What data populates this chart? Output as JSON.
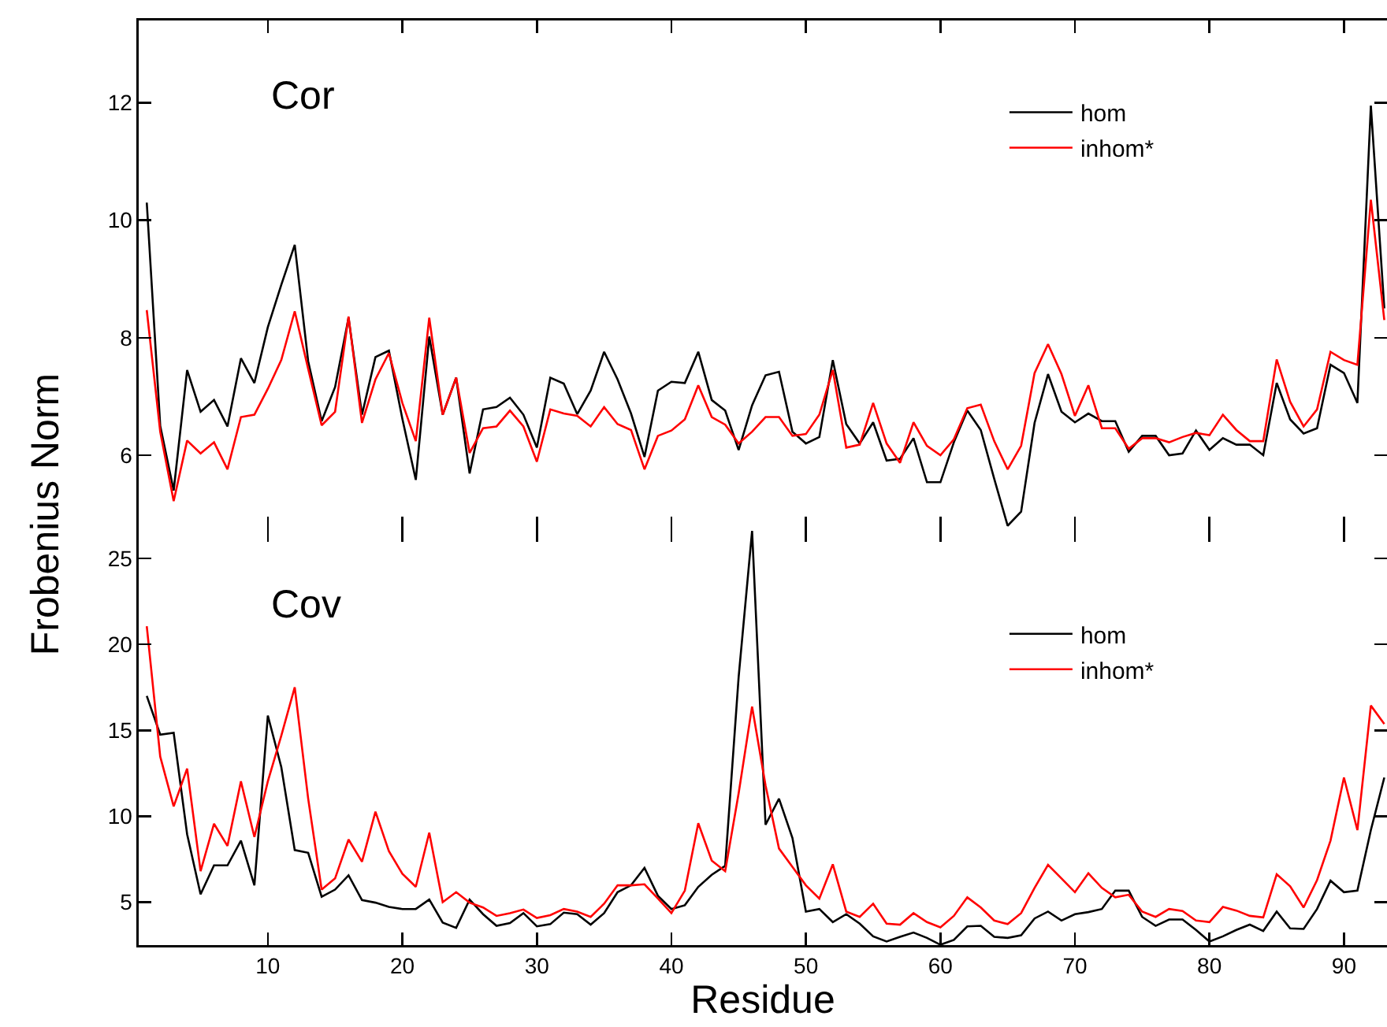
{
  "chart_data": [
    {
      "type": "line",
      "title": "Cor",
      "ylabel": "Frobenius Norm",
      "x": [
        1,
        2,
        3,
        4,
        5,
        6,
        7,
        8,
        9,
        10,
        11,
        12,
        13,
        14,
        15,
        16,
        17,
        18,
        19,
        20,
        21,
        22,
        23,
        24,
        25,
        26,
        27,
        28,
        29,
        30,
        31,
        32,
        33,
        34,
        35,
        36,
        37,
        38,
        39,
        40,
        41,
        42,
        43,
        44,
        45,
        46,
        47,
        48,
        49,
        50,
        51,
        52,
        53,
        54,
        55,
        56,
        57,
        58,
        59,
        60,
        61,
        62,
        63,
        64,
        65,
        66,
        67,
        68,
        69,
        70,
        71,
        72,
        73,
        74,
        75,
        76,
        77,
        78,
        79,
        80,
        81,
        82,
        83,
        84,
        85,
        86,
        87,
        88,
        89,
        90,
        91,
        92,
        93
      ],
      "series": [
        {
          "name": "hom",
          "color": "#000000",
          "values": [
            10.3,
            6.5,
            5.4,
            7.45,
            6.74,
            6.94,
            6.49,
            7.65,
            7.23,
            8.18,
            8.9,
            9.58,
            7.6,
            6.58,
            7.16,
            8.34,
            6.69,
            7.67,
            7.78,
            6.62,
            5.58,
            8.02,
            6.69,
            7.32,
            5.69,
            6.78,
            6.82,
            6.98,
            6.69,
            6.13,
            7.32,
            7.22,
            6.7,
            7.1,
            7.76,
            7.29,
            6.71,
            5.97,
            7.1,
            7.25,
            7.23,
            7.76,
            6.94,
            6.76,
            6.09,
            6.85,
            7.36,
            7.42,
            6.4,
            6.2,
            6.31,
            7.62,
            6.53,
            6.2,
            6.56,
            5.91,
            5.94,
            6.29,
            5.54,
            5.54,
            6.22,
            6.76,
            6.43,
            5.6,
            4.8,
            5.04,
            6.55,
            7.38,
            6.74,
            6.56,
            6.71,
            6.58,
            6.58,
            6.06,
            6.33,
            6.33,
            6.0,
            6.03,
            6.42,
            6.09,
            6.29,
            6.18,
            6.18,
            6.0,
            7.23,
            6.61,
            6.37,
            6.46,
            7.54,
            7.4,
            6.89,
            11.95,
            8.5
          ]
        },
        {
          "name": "inhom*",
          "color": "#ff0000",
          "values": [
            8.47,
            6.4,
            5.22,
            6.25,
            6.03,
            6.22,
            5.76,
            6.65,
            6.69,
            7.13,
            7.62,
            8.45,
            7.47,
            6.51,
            6.74,
            8.36,
            6.55,
            7.29,
            7.74,
            6.89,
            6.24,
            8.34,
            6.69,
            7.32,
            6.04,
            6.46,
            6.49,
            6.76,
            6.49,
            5.89,
            6.78,
            6.71,
            6.67,
            6.49,
            6.82,
            6.53,
            6.43,
            5.76,
            6.33,
            6.42,
            6.61,
            7.19,
            6.65,
            6.52,
            6.2,
            6.4,
            6.65,
            6.65,
            6.33,
            6.36,
            6.69,
            7.45,
            6.13,
            6.18,
            6.89,
            6.2,
            5.87,
            6.56,
            6.16,
            6.0,
            6.27,
            6.8,
            6.86,
            6.24,
            5.76,
            6.16,
            7.4,
            7.89,
            7.38,
            6.67,
            7.19,
            6.46,
            6.46,
            6.11,
            6.29,
            6.29,
            6.22,
            6.31,
            6.38,
            6.34,
            6.69,
            6.43,
            6.24,
            6.24,
            7.63,
            6.91,
            6.49,
            6.78,
            7.76,
            7.62,
            7.54,
            10.35,
            8.3
          ]
        }
      ],
      "xlim": [
        0.4,
        93.2
      ],
      "xticks": [
        10,
        20,
        30,
        40,
        50,
        60,
        70,
        80,
        90
      ],
      "ylim": [
        4.74,
        13.4
      ],
      "yticks": [
        6,
        8,
        10,
        12
      ],
      "tick_labels": "y",
      "grid": false,
      "legend": "top right",
      "line_style": "solid",
      "marker": "none"
    },
    {
      "type": "line",
      "title": "Cov",
      "xlabel": "Residue",
      "x": [
        1,
        2,
        3,
        4,
        5,
        6,
        7,
        8,
        9,
        10,
        11,
        12,
        13,
        14,
        15,
        16,
        17,
        18,
        19,
        20,
        21,
        22,
        23,
        24,
        25,
        26,
        27,
        28,
        29,
        30,
        31,
        32,
        33,
        34,
        35,
        36,
        37,
        38,
        39,
        40,
        41,
        42,
        43,
        44,
        45,
        46,
        47,
        48,
        49,
        50,
        51,
        52,
        53,
        54,
        55,
        56,
        57,
        58,
        59,
        60,
        61,
        62,
        63,
        64,
        65,
        66,
        67,
        68,
        69,
        70,
        71,
        72,
        73,
        74,
        75,
        76,
        77,
        78,
        79,
        80,
        81,
        82,
        83,
        84,
        85,
        86,
        87,
        88,
        89,
        90,
        91,
        92,
        93
      ],
      "series": [
        {
          "name": "hom",
          "color": "#000000",
          "values": [
            17.0,
            14.75,
            14.85,
            8.95,
            5.46,
            7.14,
            7.14,
            8.58,
            5.98,
            15.86,
            12.86,
            8.03,
            7.87,
            5.31,
            5.73,
            6.56,
            5.12,
            4.97,
            4.72,
            4.6,
            4.6,
            5.15,
            3.81,
            3.5,
            5.15,
            4.3,
            3.62,
            3.78,
            4.36,
            3.59,
            3.72,
            4.39,
            4.3,
            3.69,
            4.36,
            5.58,
            5.98,
            6.99,
            5.37,
            4.6,
            4.82,
            5.89,
            6.59,
            7.11,
            18.1,
            26.6,
            9.5,
            11.02,
            8.73,
            4.45,
            4.6,
            3.84,
            4.3,
            3.75,
            3.01,
            2.71,
            2.98,
            3.23,
            2.92,
            2.52,
            2.8,
            3.59,
            3.62,
            2.98,
            2.92,
            3.07,
            4.05,
            4.45,
            3.93,
            4.3,
            4.42,
            4.6,
            5.67,
            5.67,
            4.14,
            3.62,
            3.99,
            3.99,
            3.38,
            2.71,
            3.01,
            3.38,
            3.69,
            3.32,
            4.45,
            3.47,
            3.44,
            4.6,
            6.25,
            5.58,
            5.67,
            9.19,
            12.25
          ]
        },
        {
          "name": "inhom*",
          "color": "#ff0000",
          "values": [
            21.06,
            13.47,
            10.57,
            12.77,
            6.8,
            9.56,
            8.27,
            12.03,
            8.79,
            12.03,
            14.69,
            17.5,
            11.02,
            5.73,
            6.38,
            8.64,
            7.35,
            10.26,
            7.97,
            6.65,
            5.89,
            9.04,
            5.0,
            5.58,
            4.97,
            4.69,
            4.2,
            4.36,
            4.57,
            4.08,
            4.24,
            4.6,
            4.45,
            4.14,
            4.91,
            5.98,
            5.98,
            6.04,
            5.21,
            4.36,
            5.67,
            9.59,
            7.42,
            6.8,
            11.33,
            16.38,
            11.79,
            8.12,
            7.05,
            5.98,
            5.21,
            7.2,
            4.45,
            4.14,
            4.91,
            3.75,
            3.69,
            4.36,
            3.84,
            3.53,
            4.2,
            5.28,
            4.69,
            3.93,
            3.72,
            4.36,
            5.83,
            7.17,
            6.38,
            5.58,
            6.68,
            5.83,
            5.28,
            5.43,
            4.45,
            4.14,
            4.6,
            4.48,
            3.93,
            3.84,
            4.72,
            4.51,
            4.2,
            4.11,
            6.62,
            5.92,
            4.69,
            6.28,
            8.58,
            12.25,
            9.19,
            16.44,
            15.37
          ]
        }
      ],
      "xlim": [
        0.4,
        93.2
      ],
      "xticks": [
        10,
        20,
        30,
        40,
        50,
        60,
        70,
        80,
        90
      ],
      "ylim": [
        2.5,
        26.7
      ],
      "yticks": [
        5,
        10,
        15,
        20,
        25
      ],
      "grid": false,
      "legend": "top right",
      "line_style": "solid",
      "marker": "none"
    }
  ]
}
